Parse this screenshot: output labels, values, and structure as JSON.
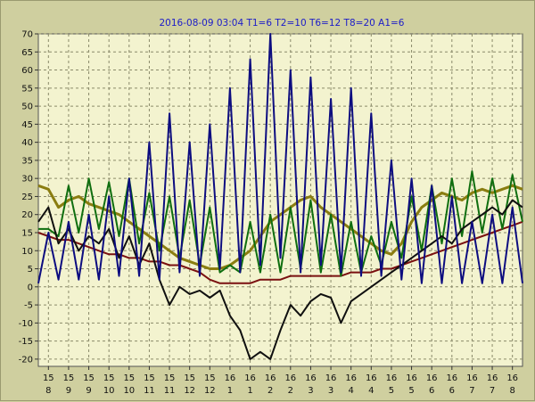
{
  "chart_data": {
    "type": "line",
    "title": "2016-08-09 03:04  T1=6 T2=10 T6=12 T8=20 A1=6",
    "xlabel": "",
    "ylabel": "",
    "ylim": [
      -22,
      70
    ],
    "y_ticks": [
      -20,
      -15,
      -10,
      -5,
      0,
      5,
      10,
      15,
      20,
      25,
      30,
      35,
      40,
      45,
      50,
      55,
      60,
      65,
      70
    ],
    "x_ticks": [
      {
        "top": "15",
        "bottom": "8"
      },
      {
        "top": "15",
        "bottom": "9"
      },
      {
        "top": "15",
        "bottom": "9"
      },
      {
        "top": "15",
        "bottom": "10"
      },
      {
        "top": "15",
        "bottom": "10"
      },
      {
        "top": "15",
        "bottom": "11"
      },
      {
        "top": "15",
        "bottom": "11"
      },
      {
        "top": "15",
        "bottom": "12"
      },
      {
        "top": "15",
        "bottom": "12"
      },
      {
        "top": "16",
        "bottom": "1"
      },
      {
        "top": "16",
        "bottom": "1"
      },
      {
        "top": "16",
        "bottom": "2"
      },
      {
        "top": "16",
        "bottom": "2"
      },
      {
        "top": "16",
        "bottom": "3"
      },
      {
        "top": "16",
        "bottom": "3"
      },
      {
        "top": "16",
        "bottom": "4"
      },
      {
        "top": "16",
        "bottom": "4"
      },
      {
        "top": "16",
        "bottom": "5"
      },
      {
        "top": "16",
        "bottom": "5"
      },
      {
        "top": "16",
        "bottom": "6"
      },
      {
        "top": "16",
        "bottom": "6"
      },
      {
        "top": "16",
        "bottom": "7"
      },
      {
        "top": "16",
        "bottom": "7"
      },
      {
        "top": "16",
        "bottom": "8"
      }
    ],
    "grid": true,
    "legend": "none",
    "colors": {
      "background": "#cfcf9f",
      "plot_background": "#f3f3cf",
      "grid": "#8a8a6a",
      "title": "#1c1cc8"
    },
    "series": [
      {
        "color": "#8a7d10",
        "x": [
          0,
          1,
          2,
          3,
          4,
          5,
          6,
          7,
          8,
          9,
          10,
          11,
          12,
          13,
          14,
          15,
          16,
          17,
          18,
          19,
          20,
          21,
          22,
          23,
          24,
          25,
          26,
          27,
          28,
          29,
          30,
          31,
          32,
          33,
          34,
          35,
          36,
          37,
          38,
          39,
          40,
          41,
          42,
          43,
          44,
          45,
          46,
          47,
          48
        ],
        "values": [
          28,
          27,
          22,
          24,
          25,
          23,
          22,
          21,
          20,
          18,
          16,
          14,
          12,
          10,
          8,
          7,
          6,
          5,
          5,
          6,
          8,
          10,
          14,
          18,
          20,
          22,
          24,
          25,
          22,
          20,
          18,
          16,
          14,
          12,
          10,
          9,
          12,
          18,
          22,
          24,
          26,
          25,
          24,
          26,
          27,
          26,
          27,
          28,
          27
        ]
      },
      {
        "color": "#7a1010",
        "x": [
          0,
          1,
          2,
          3,
          4,
          5,
          6,
          7,
          8,
          9,
          10,
          11,
          12,
          13,
          14,
          15,
          16,
          17,
          18,
          19,
          20,
          21,
          22,
          23,
          24,
          25,
          26,
          27,
          28,
          29,
          30,
          31,
          32,
          33,
          34,
          35,
          36,
          37,
          38,
          39,
          40,
          41,
          42,
          43,
          44,
          45,
          46,
          47,
          48
        ],
        "values": [
          15,
          14,
          13,
          13,
          12,
          11,
          10,
          9,
          9,
          8,
          8,
          7,
          7,
          6,
          6,
          5,
          4,
          2,
          1,
          1,
          1,
          1,
          2,
          2,
          2,
          3,
          3,
          3,
          3,
          3,
          3,
          4,
          4,
          4,
          5,
          5,
          6,
          7,
          8,
          9,
          10,
          11,
          12,
          13,
          14,
          15,
          16,
          17,
          18
        ]
      },
      {
        "color": "#0f6e0f",
        "x": [
          0,
          1,
          2,
          3,
          4,
          5,
          6,
          7,
          8,
          9,
          10,
          11,
          12,
          13,
          14,
          15,
          16,
          17,
          18,
          19,
          20,
          21,
          22,
          23,
          24,
          25,
          26,
          27,
          28,
          29,
          30,
          31,
          32,
          33,
          34,
          35,
          36,
          37,
          38,
          39,
          40,
          41,
          42,
          43,
          44,
          45,
          46,
          47,
          48
        ],
        "values": [
          16,
          16,
          14,
          28,
          15,
          30,
          16,
          29,
          14,
          30,
          12,
          26,
          10,
          25,
          8,
          24,
          6,
          22,
          4,
          6,
          4,
          18,
          4,
          20,
          4,
          22,
          5,
          24,
          4,
          20,
          3,
          18,
          4,
          14,
          6,
          18,
          8,
          25,
          10,
          28,
          12,
          30,
          14,
          32,
          15,
          30,
          16,
          31,
          18
        ]
      },
      {
        "color": "#101010",
        "x": [
          0,
          1,
          2,
          3,
          4,
          5,
          6,
          7,
          8,
          9,
          10,
          11,
          12,
          13,
          14,
          15,
          16,
          17,
          18,
          19,
          20,
          21,
          22,
          23,
          24,
          25,
          26,
          27,
          28,
          29,
          30,
          31,
          32,
          33,
          34,
          35,
          36,
          37,
          38,
          39,
          40,
          41,
          42,
          43,
          44,
          45,
          46,
          47,
          48
        ],
        "values": [
          18,
          22,
          12,
          16,
          10,
          14,
          12,
          16,
          8,
          14,
          6,
          12,
          2,
          -5,
          0,
          -2,
          -1,
          -3,
          -1,
          -8,
          -12,
          -20,
          -18,
          -20,
          -12,
          -5,
          -8,
          -4,
          -2,
          -3,
          -10,
          -4,
          -2,
          0,
          2,
          4,
          6,
          8,
          10,
          12,
          14,
          12,
          16,
          18,
          20,
          22,
          20,
          24,
          22
        ]
      },
      {
        "color": "#0d0d80",
        "x": [
          0,
          1,
          2,
          3,
          4,
          5,
          6,
          7,
          8,
          9,
          10,
          11,
          12,
          13,
          14,
          15,
          16,
          17,
          18,
          19,
          20,
          21,
          22,
          23,
          24,
          25,
          26,
          27,
          28,
          29,
          30,
          31,
          32,
          33,
          34,
          35,
          36,
          37,
          38,
          39,
          40,
          41,
          42,
          43,
          44,
          45,
          46,
          47,
          48
        ],
        "values": [
          1,
          15,
          2,
          18,
          2,
          20,
          2,
          25,
          3,
          30,
          3,
          40,
          2,
          48,
          4,
          40,
          3,
          45,
          5,
          55,
          4,
          63,
          6,
          70,
          8,
          60,
          4,
          58,
          6,
          52,
          4,
          55,
          3,
          48,
          3,
          35,
          2,
          30,
          1,
          28,
          1,
          25,
          1,
          18,
          1,
          20,
          1,
          22,
          1
        ]
      }
    ]
  }
}
